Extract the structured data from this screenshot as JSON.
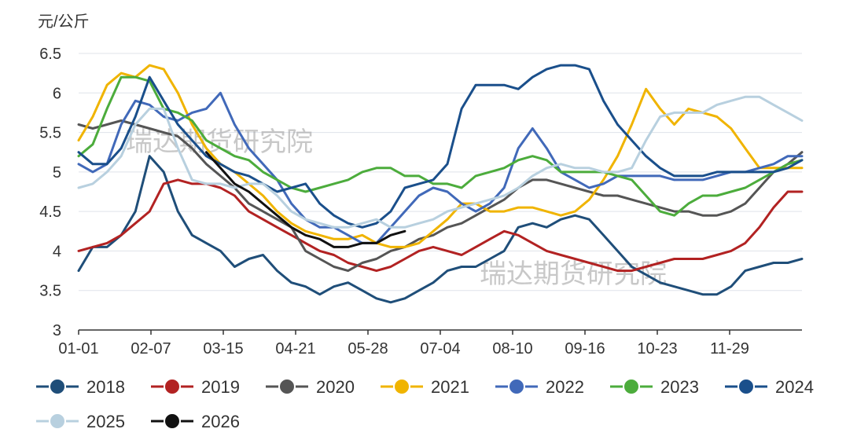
{
  "chart_data": {
    "type": "line",
    "ylabel": "元/公斤",
    "ylim": [
      3,
      6.5
    ],
    "yticks": [
      "3",
      "3.5",
      "4",
      "4.5",
      "5",
      "5.5",
      "6",
      "6.5"
    ],
    "xticks": [
      "01-01",
      "02-07",
      "03-15",
      "04-21",
      "05-28",
      "07-04",
      "08-10",
      "09-16",
      "10-23",
      "11-29"
    ],
    "watermark": "瑞达期货研究院",
    "grid": true,
    "legend_position": "bottom",
    "series": [
      {
        "name": "2018",
        "color": "#1f4e79",
        "x": [
          0,
          7,
          14,
          21,
          28,
          35,
          42,
          49,
          56,
          63,
          70,
          77,
          84,
          91,
          98,
          105,
          112,
          119,
          126,
          133,
          140,
          147,
          154,
          161,
          168,
          175,
          182,
          189,
          196,
          203,
          210,
          217,
          224,
          231,
          238,
          245,
          252,
          259,
          266,
          273,
          280,
          287,
          294,
          301,
          308,
          315,
          322,
          329,
          336,
          343,
          350,
          357
        ],
        "y": [
          3.75,
          4.05,
          4.05,
          4.2,
          4.5,
          5.2,
          5.0,
          4.5,
          4.2,
          4.1,
          4.0,
          3.8,
          3.9,
          3.95,
          3.75,
          3.6,
          3.55,
          3.45,
          3.55,
          3.6,
          3.5,
          3.4,
          3.35,
          3.4,
          3.5,
          3.6,
          3.75,
          3.8,
          3.8,
          3.9,
          4.0,
          4.3,
          4.35,
          4.3,
          4.4,
          4.45,
          4.4,
          4.2,
          4.0,
          3.8,
          3.7,
          3.6,
          3.55,
          3.5,
          3.45,
          3.45,
          3.55,
          3.75,
          3.8,
          3.85,
          3.85,
          3.9
        ]
      },
      {
        "name": "2019",
        "color": "#b22222",
        "x": [
          0,
          7,
          14,
          21,
          28,
          35,
          42,
          49,
          56,
          63,
          70,
          77,
          84,
          91,
          98,
          105,
          112,
          119,
          126,
          133,
          140,
          147,
          154,
          161,
          168,
          175,
          182,
          189,
          196,
          203,
          210,
          217,
          224,
          231,
          238,
          245,
          252,
          259,
          266,
          273,
          280,
          287,
          294,
          301,
          308,
          315,
          322,
          329,
          336,
          343,
          350,
          357
        ],
        "y": [
          4.0,
          4.05,
          4.1,
          4.2,
          4.35,
          4.5,
          4.85,
          4.9,
          4.85,
          4.85,
          4.8,
          4.7,
          4.5,
          4.4,
          4.3,
          4.2,
          4.1,
          4.0,
          3.95,
          3.85,
          3.8,
          3.75,
          3.8,
          3.9,
          4.0,
          4.05,
          4.0,
          3.95,
          4.05,
          4.15,
          4.25,
          4.2,
          4.1,
          4.0,
          3.95,
          3.9,
          3.85,
          3.8,
          3.75,
          3.75,
          3.8,
          3.85,
          3.9,
          3.9,
          3.9,
          3.95,
          4.0,
          4.1,
          4.3,
          4.55,
          4.75,
          4.75
        ]
      },
      {
        "name": "2020",
        "color": "#555555",
        "x": [
          0,
          7,
          14,
          21,
          28,
          35,
          42,
          49,
          56,
          63,
          70,
          77,
          84,
          91,
          98,
          105,
          112,
          119,
          126,
          133,
          140,
          147,
          154,
          161,
          168,
          175,
          182,
          189,
          196,
          203,
          210,
          217,
          224,
          231,
          238,
          245,
          252,
          259,
          266,
          273,
          280,
          287,
          294,
          301,
          308,
          315,
          322,
          329,
          336,
          343,
          350,
          357
        ],
        "y": [
          5.6,
          5.55,
          5.6,
          5.65,
          5.6,
          5.55,
          5.5,
          5.45,
          5.3,
          5.1,
          4.95,
          4.8,
          4.6,
          4.5,
          4.4,
          4.3,
          4.0,
          3.9,
          3.8,
          3.75,
          3.85,
          3.9,
          4.0,
          4.05,
          4.15,
          4.2,
          4.3,
          4.35,
          4.45,
          4.55,
          4.65,
          4.8,
          4.9,
          4.9,
          4.85,
          4.8,
          4.75,
          4.7,
          4.7,
          4.65,
          4.6,
          4.55,
          4.5,
          4.5,
          4.45,
          4.45,
          4.5,
          4.6,
          4.8,
          5.0,
          5.1,
          5.25
        ]
      },
      {
        "name": "2021",
        "color": "#f0b400",
        "x": [
          0,
          7,
          14,
          21,
          28,
          35,
          42,
          49,
          56,
          63,
          70,
          77,
          84,
          91,
          98,
          105,
          112,
          119,
          126,
          133,
          140,
          147,
          154,
          161,
          168,
          175,
          182,
          189,
          196,
          203,
          210,
          217,
          224,
          231,
          238,
          245,
          252,
          259,
          266,
          273,
          280,
          287,
          294,
          301,
          308,
          315,
          322,
          329,
          336,
          343,
          350,
          357
        ],
        "y": [
          5.4,
          5.7,
          6.1,
          6.25,
          6.2,
          6.35,
          6.3,
          6.0,
          5.6,
          5.3,
          5.1,
          5.0,
          4.85,
          4.7,
          4.5,
          4.35,
          4.25,
          4.2,
          4.15,
          4.15,
          4.2,
          4.1,
          4.05,
          4.05,
          4.1,
          4.25,
          4.4,
          4.6,
          4.6,
          4.5,
          4.5,
          4.55,
          4.55,
          4.5,
          4.45,
          4.5,
          4.65,
          4.9,
          5.2,
          5.6,
          6.05,
          5.8,
          5.6,
          5.8,
          5.75,
          5.7,
          5.55,
          5.3,
          5.05,
          5.05,
          5.05,
          5.05
        ]
      },
      {
        "name": "2022",
        "color": "#4169b9",
        "x": [
          0,
          7,
          14,
          21,
          28,
          35,
          42,
          49,
          56,
          63,
          70,
          77,
          84,
          91,
          98,
          105,
          112,
          119,
          126,
          133,
          140,
          147,
          154,
          161,
          168,
          175,
          182,
          189,
          196,
          203,
          210,
          217,
          224,
          231,
          238,
          245,
          252,
          259,
          266,
          273,
          280,
          287,
          294,
          301,
          308,
          315,
          322,
          329,
          336,
          343,
          350,
          357
        ],
        "y": [
          5.1,
          5.0,
          5.1,
          5.6,
          5.9,
          5.85,
          5.7,
          5.65,
          5.75,
          5.8,
          6.0,
          5.6,
          5.3,
          5.1,
          4.9,
          4.6,
          4.4,
          4.3,
          4.3,
          4.2,
          4.1,
          4.1,
          4.3,
          4.5,
          4.7,
          4.8,
          4.75,
          4.6,
          4.5,
          4.6,
          4.8,
          5.3,
          5.55,
          5.3,
          5.0,
          4.9,
          4.8,
          4.85,
          4.95,
          4.95,
          4.95,
          4.95,
          4.9,
          4.9,
          4.9,
          4.95,
          5.0,
          5.0,
          5.05,
          5.1,
          5.2,
          5.2
        ]
      },
      {
        "name": "2023",
        "color": "#4cac3c",
        "x": [
          0,
          7,
          14,
          21,
          28,
          35,
          42,
          49,
          56,
          63,
          70,
          77,
          84,
          91,
          98,
          105,
          112,
          119,
          126,
          133,
          140,
          147,
          154,
          161,
          168,
          175,
          182,
          189,
          196,
          203,
          210,
          217,
          224,
          231,
          238,
          245,
          252,
          259,
          266,
          273,
          280,
          287,
          294,
          301,
          308,
          315,
          322,
          329,
          336,
          343,
          350,
          357
        ],
        "y": [
          5.2,
          5.35,
          5.8,
          6.2,
          6.2,
          6.15,
          5.8,
          5.75,
          5.65,
          5.4,
          5.3,
          5.2,
          5.15,
          5.0,
          4.9,
          4.8,
          4.75,
          4.8,
          4.85,
          4.9,
          5.0,
          5.05,
          5.05,
          4.95,
          4.95,
          4.85,
          4.85,
          4.8,
          4.95,
          5.0,
          5.05,
          5.15,
          5.2,
          5.15,
          5.0,
          5.0,
          5.0,
          5.0,
          4.95,
          4.9,
          4.7,
          4.5,
          4.45,
          4.6,
          4.7,
          4.7,
          4.75,
          4.8,
          4.9,
          5.0,
          5.1,
          5.15
        ]
      },
      {
        "name": "2024",
        "color": "#1a4f8b",
        "x": [
          0,
          7,
          14,
          21,
          28,
          35,
          42,
          49,
          56,
          63,
          70,
          77,
          84,
          91,
          98,
          105,
          112,
          119,
          126,
          133,
          140,
          147,
          154,
          161,
          168,
          175,
          182,
          189,
          196,
          203,
          210,
          217,
          224,
          231,
          238,
          245,
          252,
          259,
          266,
          273,
          280,
          287,
          294,
          301,
          308,
          315,
          322,
          329,
          336,
          343,
          350,
          357
        ],
        "y": [
          5.25,
          5.1,
          5.1,
          5.3,
          5.7,
          6.2,
          5.9,
          5.6,
          5.4,
          5.2,
          5.1,
          5.0,
          4.95,
          4.85,
          4.75,
          4.8,
          4.85,
          4.6,
          4.45,
          4.35,
          4.3,
          4.35,
          4.5,
          4.8,
          4.85,
          4.9,
          5.1,
          5.8,
          6.1,
          6.1,
          6.1,
          6.05,
          6.2,
          6.3,
          6.35,
          6.35,
          6.3,
          5.9,
          5.6,
          5.4,
          5.2,
          5.05,
          4.95,
          4.95,
          4.95,
          5.0,
          5.0,
          5.0,
          5.0,
          5.0,
          5.05,
          5.15
        ]
      },
      {
        "name": "2025",
        "color": "#b8d0df",
        "x": [
          0,
          7,
          14,
          21,
          28,
          35,
          42,
          49,
          56,
          63,
          70,
          77,
          84,
          91,
          98,
          105,
          112,
          119,
          126,
          133,
          140,
          147,
          154,
          161,
          168,
          175,
          182,
          189,
          196,
          203,
          210,
          217,
          224,
          231,
          238,
          245,
          252,
          259,
          266,
          273,
          280,
          287,
          294,
          301,
          308,
          315,
          322,
          329,
          336,
          343,
          350,
          357
        ],
        "y": [
          4.8,
          4.85,
          5.0,
          5.2,
          5.6,
          5.8,
          5.8,
          5.3,
          4.9,
          4.85,
          4.85,
          4.8,
          4.85,
          4.85,
          4.7,
          4.5,
          4.4,
          4.35,
          4.3,
          4.3,
          4.35,
          4.4,
          4.3,
          4.3,
          4.35,
          4.4,
          4.5,
          4.55,
          4.6,
          4.65,
          4.7,
          4.8,
          4.95,
          5.05,
          5.1,
          5.05,
          5.05,
          5.0,
          5.0,
          5.05,
          5.4,
          5.7,
          5.75,
          5.75,
          5.75,
          5.85,
          5.9,
          5.95,
          5.95,
          5.85,
          5.75,
          5.65
        ]
      },
      {
        "name": "2026",
        "color": "#111111",
        "x": [
          63,
          70,
          77,
          84,
          91,
          98,
          105,
          112,
          119,
          126,
          133,
          140,
          147,
          154,
          161
        ],
        "y": [
          5.25,
          5.05,
          4.85,
          4.75,
          4.6,
          4.45,
          4.3,
          4.2,
          4.15,
          4.05,
          4.05,
          4.1,
          4.1,
          4.2,
          4.25
        ]
      }
    ]
  }
}
